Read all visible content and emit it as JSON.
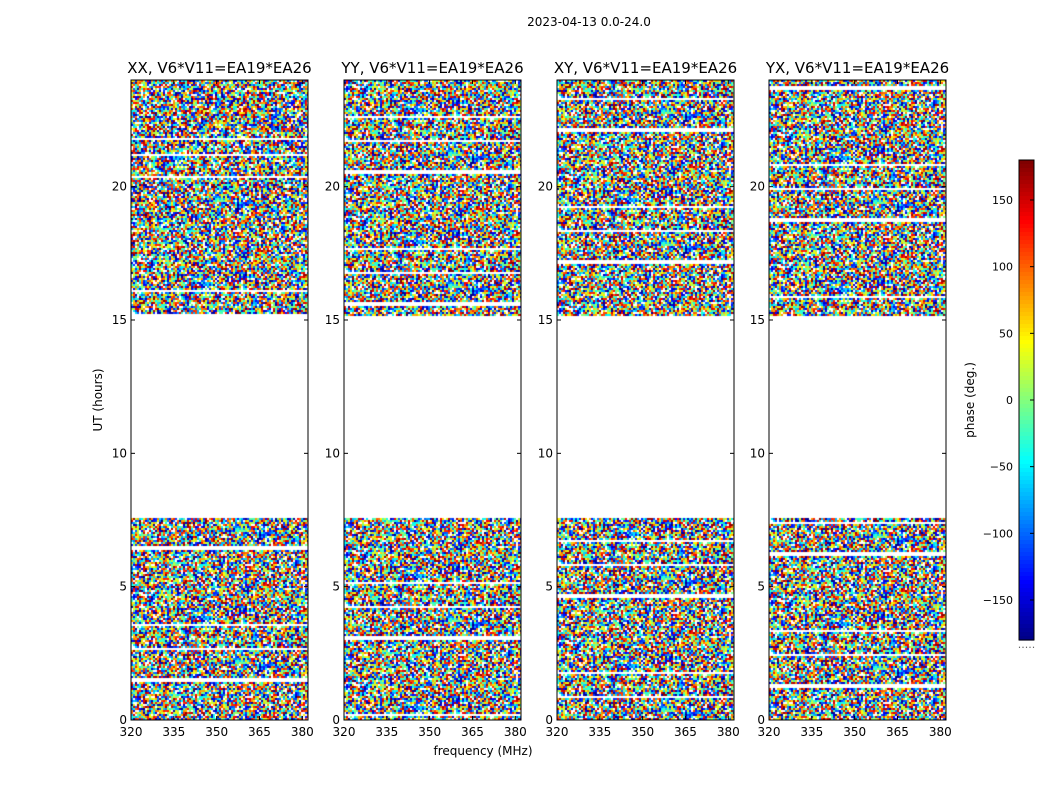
{
  "suptitle": "2023-04-13 0.0-24.0",
  "chart_data": {
    "type": "heatmap",
    "xlabel": "frequency (MHz)",
    "ylabel": "UT (hours)",
    "xlim": [
      320,
      382
    ],
    "ylim": [
      0,
      24
    ],
    "xticks": [
      "320",
      "335",
      "350",
      "365",
      "380"
    ],
    "yticks": [
      "0",
      "5",
      "10",
      "15",
      "20"
    ],
    "colorbar": {
      "label": "phase (deg.)",
      "range": [
        -180,
        180
      ],
      "colormap": "jet",
      "ticks": [
        "150",
        "100",
        "50",
        "0",
        "−50",
        "−100",
        "−150"
      ],
      "under_label": "....."
    },
    "no_data_ut_range": [
      7.6,
      15.2
    ],
    "panels": [
      {
        "title": "XX, V6*V11=EA19*EA26",
        "polarization": "XX"
      },
      {
        "title": "YY, V6*V11=EA19*EA26",
        "polarization": "YY"
      },
      {
        "title": "XY, V6*V11=EA19*EA26",
        "polarization": "XY"
      },
      {
        "title": "YX, V6*V11=EA19*EA26",
        "polarization": "YX"
      }
    ]
  }
}
